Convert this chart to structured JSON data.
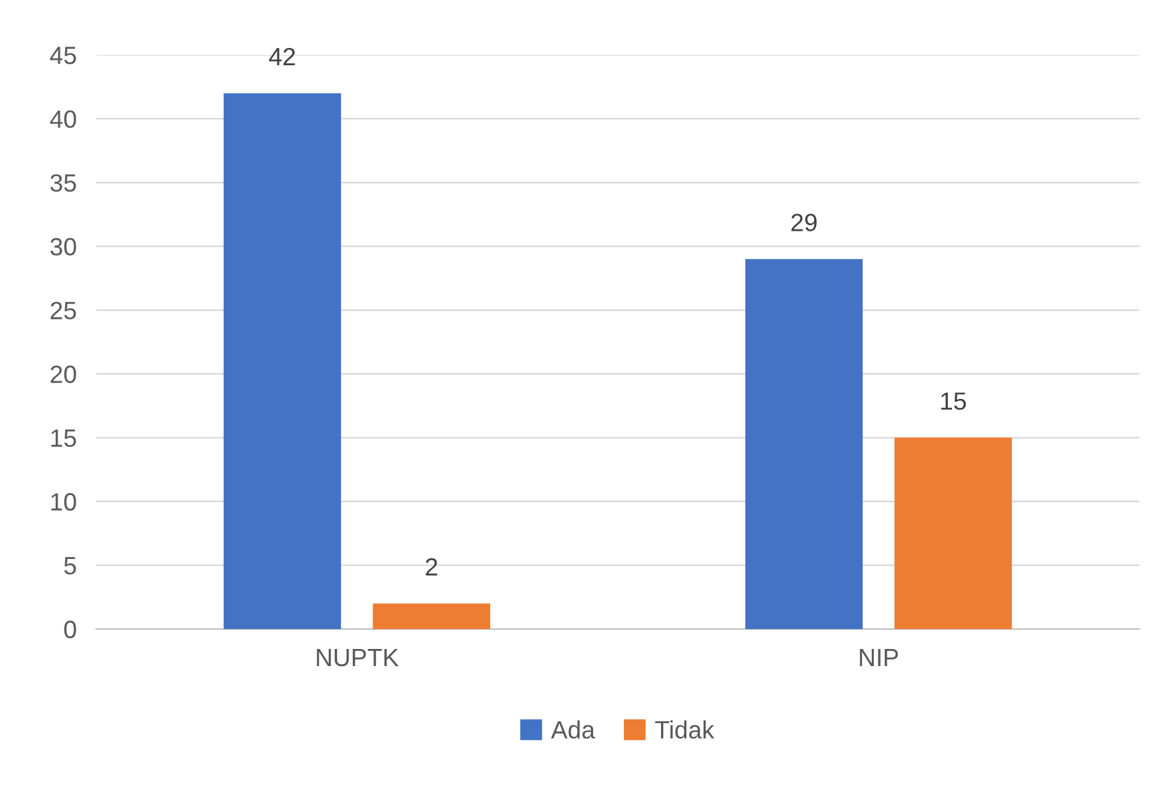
{
  "chart_data": {
    "type": "bar",
    "categories": [
      "NUPTK",
      "NIP"
    ],
    "series": [
      {
        "name": "Ada",
        "color": "#4472c4",
        "values": [
          42,
          29
        ]
      },
      {
        "name": "Tidak",
        "color": "#ed7d31",
        "values": [
          2,
          15
        ]
      }
    ],
    "ylim": [
      0,
      45
    ],
    "yticks": [
      0,
      5,
      10,
      15,
      20,
      25,
      30,
      35,
      40,
      45
    ],
    "grid": "y",
    "legend": "bottom",
    "data_labels": true
  }
}
